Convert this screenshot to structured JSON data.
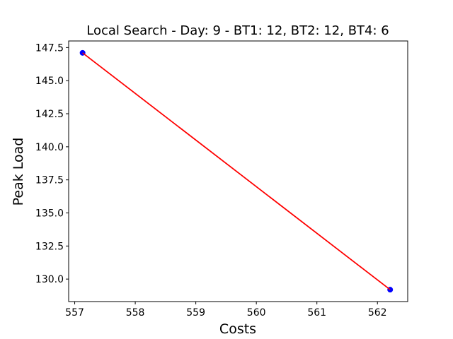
{
  "chart_data": {
    "type": "line",
    "title": "Local Search - Day: 9 - BT1: 12, BT2: 12, BT4: 6",
    "xlabel": "Costs",
    "ylabel": "Peak Load",
    "xlim": [
      556.9,
      562.5
    ],
    "ylim": [
      128.3,
      148.0
    ],
    "x_ticks": [
      557,
      558,
      559,
      560,
      561,
      562
    ],
    "x_tick_labels": [
      "557",
      "558",
      "559",
      "560",
      "561",
      "562"
    ],
    "y_ticks": [
      130.0,
      132.5,
      135.0,
      137.5,
      140.0,
      142.5,
      145.0,
      147.5
    ],
    "y_tick_labels": [
      "130.0",
      "132.5",
      "135.0",
      "137.5",
      "140.0",
      "142.5",
      "145.0",
      "147.5"
    ],
    "grid": false,
    "series": [
      {
        "line_color": "#ff0000",
        "marker_color": "#0000ff",
        "points": [
          {
            "x": 557.13,
            "y": 147.1
          },
          {
            "x": 562.21,
            "y": 129.2
          }
        ]
      }
    ]
  }
}
